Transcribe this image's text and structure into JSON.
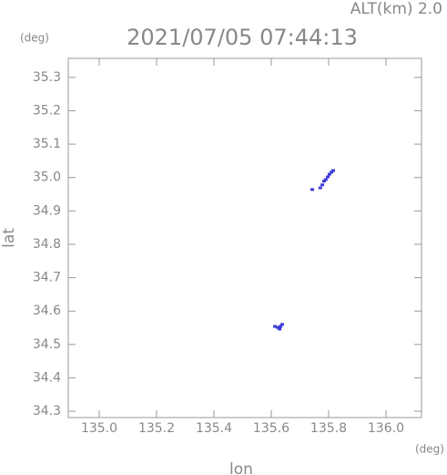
{
  "chart_data": {
    "type": "scatter",
    "title": "2021/07/05 07:44:13",
    "subtitle": "ALT(km) 2.0",
    "x_label": "lon",
    "y_label": "lat",
    "x_unit": "(deg)",
    "y_unit": "(deg)",
    "color": "#3c3cd8",
    "x": [
      135.816,
      135.81,
      135.803,
      135.797,
      135.79,
      135.784,
      135.778,
      135.771,
      135.743,
      135.613,
      135.622,
      135.632,
      135.638,
      135.629
    ],
    "values": [
      35.021,
      35.016,
      35.01,
      35.002,
      34.994,
      34.989,
      34.978,
      34.969,
      34.964,
      34.554,
      34.551,
      34.554,
      34.56,
      34.546
    ],
    "xlim": [
      134.892,
      136.124
    ],
    "ylim": [
      34.281,
      35.357
    ],
    "xticks": [
      {
        "value": 135,
        "label": "135.0"
      },
      135.2,
      135.4,
      135.6,
      135.8,
      {
        "value": 136,
        "label": "136.0"
      }
    ],
    "yticks": [
      34.3,
      34.4,
      34.5,
      34.6,
      34.7,
      34.8,
      34.9,
      {
        "value": 35,
        "label": "35.0"
      },
      35.1,
      35.2,
      35.3
    ],
    "grid": false
  }
}
